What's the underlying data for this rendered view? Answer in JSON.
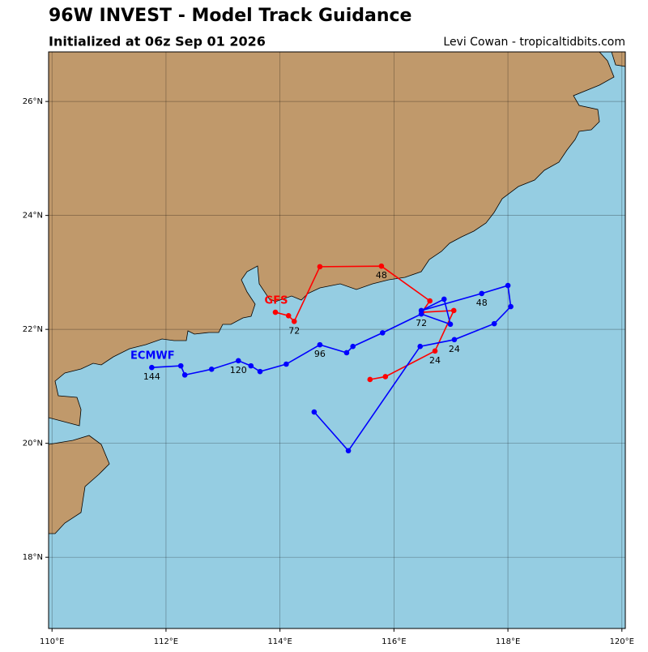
{
  "chart_data": {
    "type": "map",
    "title": "96W INVEST - Model Track Guidance",
    "subtitle": "Initialized at 06z Sep 01 2026",
    "credit": "Levi Cowan - tropicaltidbits.com",
    "xlim": [
      109.94,
      120.06
    ],
    "ylim": [
      16.75,
      26.87
    ],
    "xticks": [
      {
        "value": 110,
        "label": "110°E"
      },
      {
        "value": 112,
        "label": "112°E"
      },
      {
        "value": 114,
        "label": "114°E"
      },
      {
        "value": 116,
        "label": "116°E"
      },
      {
        "value": 118,
        "label": "118°E"
      },
      {
        "value": 120,
        "label": "120°E"
      }
    ],
    "yticks": [
      {
        "value": 18,
        "label": "18°N"
      },
      {
        "value": 20,
        "label": "20°N"
      },
      {
        "value": 22,
        "label": "22°N"
      },
      {
        "value": 24,
        "label": "24°N"
      },
      {
        "value": 26,
        "label": "26°N"
      }
    ],
    "grid": true,
    "land_color": "#c0996b",
    "ocean_color": "#95cde2",
    "series": [
      {
        "name": "GFS",
        "color": "#ff0000",
        "lon": [
          115.58,
          115.85,
          116.72,
          117.05,
          116.49,
          116.63,
          115.78,
          114.7,
          114.25,
          114.15,
          113.92
        ],
        "lat": [
          21.12,
          21.17,
          21.62,
          22.33,
          22.3,
          22.5,
          23.11,
          23.1,
          22.14,
          22.24,
          22.3
        ],
        "point_labels": [
          null,
          null,
          "24",
          null,
          null,
          null,
          "48",
          null,
          "72",
          null,
          null
        ]
      },
      {
        "name": "ECMWF",
        "color": "#0000ff",
        "lon": [
          114.6,
          115.2,
          116.46,
          117.06,
          117.76,
          118.05,
          118.0,
          117.54,
          116.48,
          116.88,
          116.99,
          116.48,
          115.8,
          115.28,
          115.17,
          114.7,
          114.11,
          113.65,
          113.49,
          113.27,
          112.8,
          112.33,
          112.26,
          111.75
        ],
        "lat": [
          20.55,
          19.87,
          21.7,
          21.82,
          22.1,
          22.4,
          22.77,
          22.63,
          22.33,
          22.53,
          22.09,
          22.27,
          21.94,
          21.7,
          21.59,
          21.73,
          21.39,
          21.26,
          21.36,
          21.45,
          21.3,
          21.2,
          21.36,
          21.33
        ],
        "point_labels": [
          null,
          null,
          null,
          "24",
          null,
          null,
          null,
          "48",
          null,
          null,
          null,
          "72",
          null,
          null,
          null,
          "96",
          null,
          null,
          null,
          "120",
          null,
          null,
          null,
          "144"
        ]
      }
    ]
  }
}
